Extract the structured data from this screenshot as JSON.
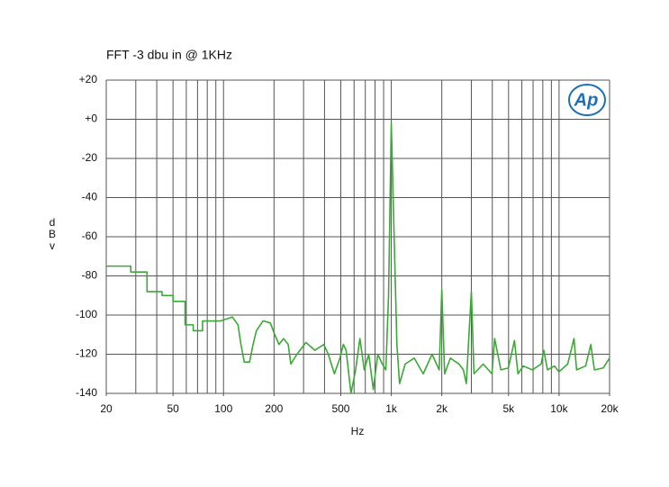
{
  "chart_data": {
    "type": "line",
    "title": "FFT -3 dbu in @ 1KHz",
    "logo": "Ap",
    "xlabel": "Hz",
    "ylabel": "dBv",
    "xscale": "log",
    "grid": true,
    "xlim": [
      20,
      20000
    ],
    "ylim": [
      -140,
      20
    ],
    "xticks": [
      20,
      50,
      100,
      200,
      500,
      {
        "value": 1000,
        "label": "1k"
      },
      {
        "value": 2000,
        "label": "2k"
      },
      {
        "value": 5000,
        "label": "5k"
      },
      {
        "value": 10000,
        "label": "10k"
      },
      {
        "value": 20000,
        "label": "20k"
      }
    ],
    "xgrid": [
      20,
      30,
      40,
      50,
      60,
      70,
      80,
      90,
      100,
      200,
      300,
      400,
      500,
      600,
      700,
      800,
      900,
      1000,
      2000,
      3000,
      4000,
      5000,
      6000,
      7000,
      8000,
      9000,
      10000,
      20000
    ],
    "yticks": [
      {
        "value": 20,
        "label": "+20"
      },
      {
        "value": 0,
        "label": "+0"
      },
      -20,
      -40,
      -60,
      -80,
      -100,
      -120,
      -140
    ],
    "series": [
      {
        "name": "FFT",
        "color": "#3aa935",
        "x": [
          20,
          28,
          28,
          35,
          35,
          43,
          43,
          50,
          50,
          59,
          59,
          66,
          66,
          75,
          75,
          96,
          113,
          122,
          127,
          133,
          143,
          150,
          157,
          172,
          190,
          202,
          214,
          228,
          243,
          252,
          274,
          310,
          350,
          396,
          421,
          458,
          494,
          518,
          538,
          575,
          613,
          650,
          690,
          734,
          781,
          831,
          884,
          928,
          963,
          1000,
          1040,
          1080,
          1120,
          1210,
          1370,
          1550,
          1750,
          1930,
          2000,
          2080,
          2250,
          2530,
          2690,
          2800,
          3000,
          3110,
          3530,
          3980,
          4130,
          4500,
          4990,
          5420,
          5690,
          6120,
          6930,
          7820,
          8110,
          8530,
          9390,
          9980,
          11260,
          12270,
          12720,
          14400,
          15460,
          16240,
          18340,
          20000
        ],
        "y": [
          -75,
          -75,
          -78,
          -78,
          -88,
          -88,
          -90,
          -90,
          -93,
          -93,
          -105,
          -105,
          -108,
          -108,
          -103,
          -103,
          -101,
          -105,
          -115,
          -124,
          -124,
          -115,
          -108,
          -103,
          -104,
          -110,
          -115,
          -112,
          -115,
          -125,
          -120,
          -114,
          -118,
          -115,
          -120,
          -130,
          -122,
          -115,
          -118,
          -140,
          -128,
          -112,
          -128,
          -120,
          -138,
          -120,
          -125,
          -128,
          -90,
          -2,
          -60,
          -115,
          -135,
          -125,
          -122,
          -130,
          -120,
          -128,
          -87,
          -130,
          -122,
          -125,
          -128,
          -135,
          -88,
          -130,
          -125,
          -130,
          -112,
          -128,
          -127,
          -113,
          -130,
          -126,
          -128,
          -125,
          -118,
          -128,
          -126,
          -129,
          -125,
          -112,
          -128,
          -126,
          -115,
          -128,
          -127,
          -122
        ]
      }
    ]
  }
}
